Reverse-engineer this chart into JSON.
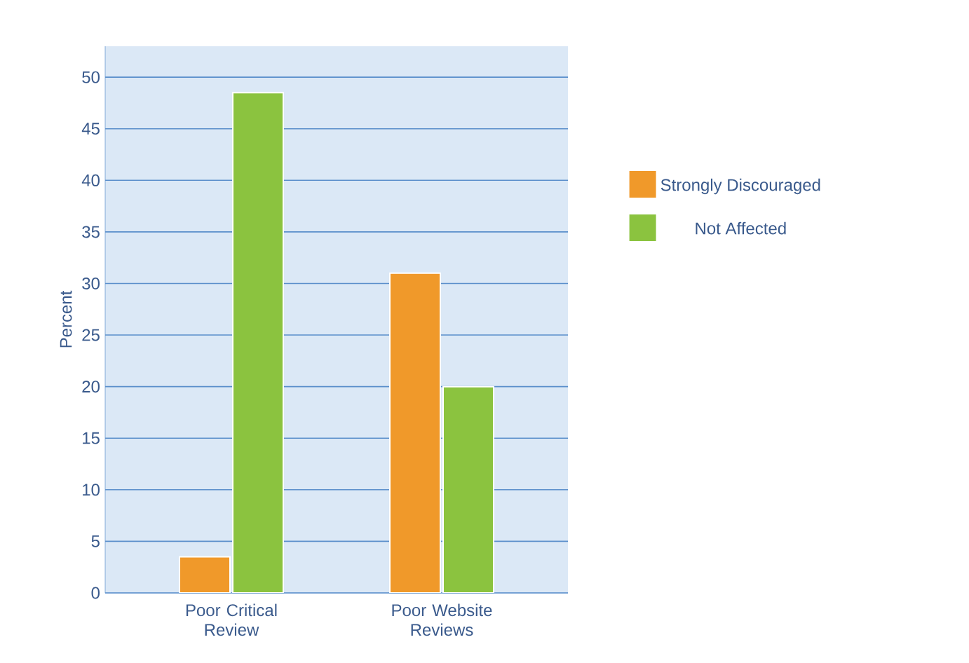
{
  "chart_data": {
    "type": "bar",
    "ylabel": "Percent",
    "categories": [
      "Poor Critical Review",
      "Poor Website Reviews"
    ],
    "series": [
      {
        "name": "Strongly Discouraged",
        "color": "#f0992a",
        "values": [
          3.5,
          31
        ]
      },
      {
        "name": "Not Affected",
        "color": "#8bc33f",
        "values": [
          48.5,
          20
        ]
      }
    ],
    "ylim": [
      0,
      53
    ],
    "yticks": [
      0,
      5,
      10,
      15,
      20,
      25,
      30,
      35,
      40,
      45,
      50
    ],
    "grid": "y",
    "legend": "right"
  }
}
